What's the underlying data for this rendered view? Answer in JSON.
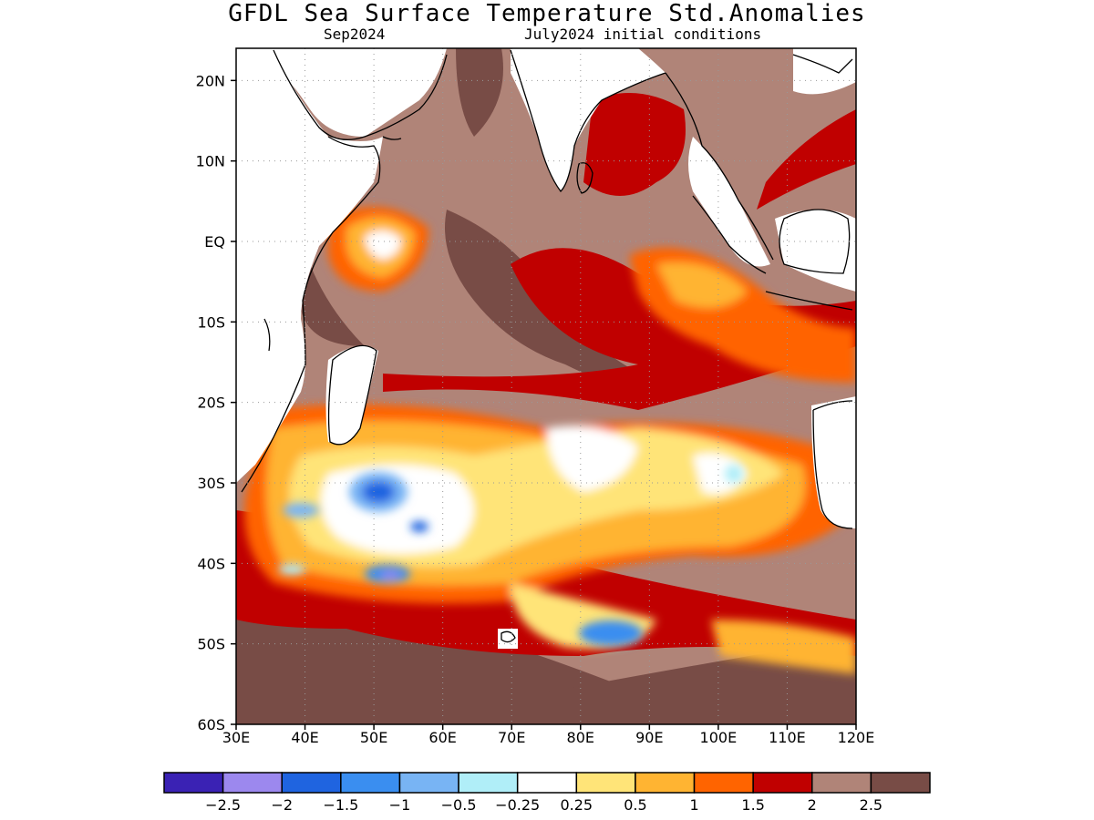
{
  "header": {
    "title": "GFDL Sea Surface Temperature Std.Anomalies",
    "valid_month": "Sep2024",
    "init_conditions": "July2024 initial conditions"
  },
  "map": {
    "lon_ticks": [
      "30E",
      "40E",
      "50E",
      "60E",
      "70E",
      "80E",
      "90E",
      "100E",
      "110E",
      "120E"
    ],
    "lat_ticks": [
      "20N",
      "10N",
      "EQ",
      "10S",
      "20S",
      "30S",
      "40S",
      "50S",
      "60S"
    ],
    "lon_range": [
      30,
      120
    ],
    "lat_range": [
      -60,
      24
    ],
    "gridlines": "dotted"
  },
  "colorbar": {
    "labels": [
      "-2.5",
      "-2",
      "-1.5",
      "-1",
      "-0.5",
      "-0.25",
      "0.25",
      "0.5",
      "1",
      "1.5",
      "2",
      "2.5"
    ],
    "colors": [
      "#3a22b4",
      "#9c88ee",
      "#1f64e0",
      "#3a8ef0",
      "#78b4f4",
      "#b0eef8",
      "#ffffff",
      "#ffe478",
      "#ffb432",
      "#ff6400",
      "#c00000",
      "#b08478",
      "#784c46"
    ]
  }
}
